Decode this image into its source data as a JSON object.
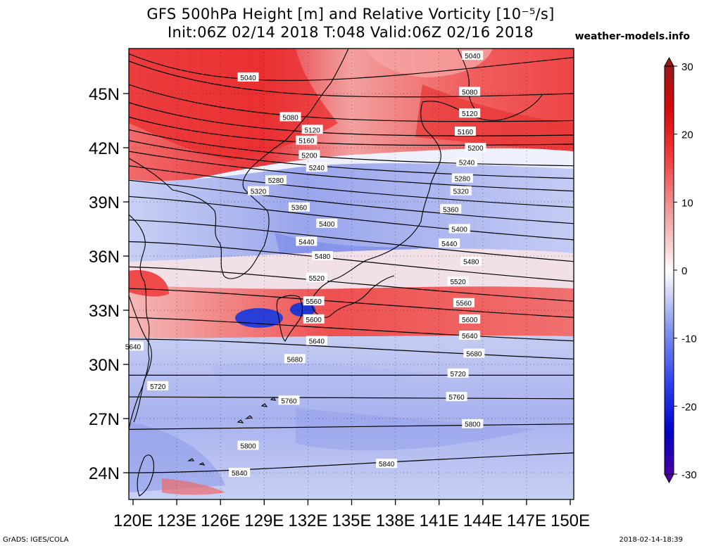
{
  "header": {
    "title_line1": "GFS 500hPa Height [m] and Relative Vorticity [10⁻⁵/s]",
    "title_line2": "Init:06Z 02/14 2018 T:048 Valid:06Z 02/16 2018",
    "site": "weather-models.info"
  },
  "footer": {
    "left": "GrADS: IGES/COLA",
    "right": "2018-02-14-18:39"
  },
  "map": {
    "lon_range": [
      120,
      150
    ],
    "lat_range": [
      22.5,
      47.5
    ],
    "lon_ticks": [
      "120E",
      "123E",
      "126E",
      "129E",
      "132E",
      "135E",
      "138E",
      "141E",
      "144E",
      "147E",
      "150E"
    ],
    "lat_ticks": [
      "24N",
      "27N",
      "30N",
      "33N",
      "36N",
      "39N",
      "42N",
      "45N"
    ],
    "graticule": "dotted",
    "colors": {
      "positive_vorticity": "#e8181a",
      "negative_vorticity": "#2a3fd8",
      "contour": "#000000",
      "coast": "#000000"
    }
  },
  "colorbar": {
    "labels": [
      "30",
      "20",
      "10",
      "0",
      "-10",
      "-20",
      "-30"
    ],
    "min": -30,
    "max": 30,
    "colors": [
      "#4a00a0",
      "#0000c8",
      "#3a50f0",
      "#8fa0f0",
      "#d8ddf8",
      "#ffffff",
      "#f8d8d8",
      "#f08f8f",
      "#f03a3a",
      "#d80000",
      "#a01818"
    ]
  },
  "contours": [
    {
      "label": "5040",
      "lat_start": 47.2,
      "lat_end": 47.0,
      "label_pos": [
        [
          "127.9",
          "45.9"
        ],
        [
          "143.3",
          "47.1"
        ]
      ]
    },
    {
      "label": "5080",
      "lat_start": 46.8,
      "lat_end": 45.0,
      "label_pos": [
        [
          "130.8",
          "43.7"
        ],
        [
          "143.1",
          "45.1"
        ]
      ]
    },
    {
      "label": "5120",
      "lat_start": 45.5,
      "lat_end": 43.5,
      "label_pos": [
        [
          "132.3",
          "43.0"
        ],
        [
          "143.1",
          "43.9"
        ]
      ]
    },
    {
      "label": "5160",
      "lat_start": 44.5,
      "lat_end": 42.7,
      "label_pos": [
        [
          "131.9",
          "42.4"
        ],
        [
          "142.8",
          "42.9"
        ]
      ]
    },
    {
      "label": "5200",
      "lat_start": 43.7,
      "lat_end": 42.2,
      "label_pos": [
        [
          "132.1",
          "41.6"
        ],
        [
          "143.5",
          "42.0"
        ]
      ]
    },
    {
      "label": "5240",
      "lat_start": 43.0,
      "lat_end": 41.0,
      "label_pos": [
        [
          "132.6",
          "40.9"
        ],
        [
          "142.9",
          "41.2"
        ]
      ]
    },
    {
      "label": "5280",
      "lat_start": 42.4,
      "lat_end": 40.3,
      "label_pos": [
        [
          "129.8",
          "40.2"
        ],
        [
          "142.6",
          "40.3"
        ]
      ]
    },
    {
      "label": "5320",
      "lat_start": 41.8,
      "lat_end": 39.6,
      "label_pos": [
        [
          "128.6",
          "39.6"
        ],
        [
          "142.5",
          "39.6"
        ]
      ]
    },
    {
      "label": "5360",
      "lat_start": 41.0,
      "lat_end": 38.7,
      "label_pos": [
        [
          "131.4",
          "38.7"
        ],
        [
          "141.8",
          "38.6"
        ]
      ]
    },
    {
      "label": "5400",
      "lat_start": 40.2,
      "lat_end": 37.8,
      "label_pos": [
        [
          "133.3",
          "37.8"
        ],
        [
          "142.4",
          "37.5"
        ]
      ]
    },
    {
      "label": "5440",
      "lat_start": 39.3,
      "lat_end": 36.9,
      "label_pos": [
        [
          "131.9",
          "36.8"
        ],
        [
          "141.7",
          "36.7"
        ]
      ]
    },
    {
      "label": "5480",
      "lat_start": 38.0,
      "lat_end": 35.7,
      "label_pos": [
        [
          "133.0",
          "36.0"
        ],
        [
          "143.2",
          "35.7"
        ]
      ]
    },
    {
      "label": "5520",
      "lat_start": 36.8,
      "lat_end": 34.6,
      "label_pos": [
        [
          "132.6",
          "34.8"
        ],
        [
          "142.3",
          "34.6"
        ]
      ]
    },
    {
      "label": "5560",
      "lat_start": 35.4,
      "lat_end": 33.5,
      "label_pos": [
        [
          "132.4",
          "33.5"
        ],
        [
          "142.7",
          "33.4"
        ]
      ]
    },
    {
      "label": "5600",
      "lat_start": 34.2,
      "lat_end": 32.6,
      "label_pos": [
        [
          "132.4",
          "32.5"
        ],
        [
          "143.1",
          "32.5"
        ]
      ]
    },
    {
      "label": "5640",
      "lat_start": 32.6,
      "lat_end": 31.3,
      "label_pos": [
        [
          "120.0",
          "31.0"
        ],
        [
          "132.6",
          "31.3"
        ],
        [
          "143.1",
          "31.6"
        ]
      ]
    },
    {
      "label": "5680",
      "lat_start": 31.4,
      "lat_end": 30.3,
      "label_pos": [
        [
          "131.1",
          "30.3"
        ],
        [
          "143.4",
          "30.6"
        ]
      ]
    },
    {
      "label": "5720",
      "lat_start": 29.4,
      "lat_end": 29.4,
      "label_pos": [
        [
          "121.7",
          "28.8"
        ],
        [
          "142.3",
          "29.5"
        ]
      ]
    },
    {
      "label": "5760",
      "lat_start": 28.2,
      "lat_end": 28.1,
      "label_pos": [
        [
          "130.7",
          "28.0"
        ],
        [
          "142.2",
          "28.2"
        ]
      ]
    },
    {
      "label": "5800",
      "lat_start": 26.4,
      "lat_end": 26.7,
      "label_pos": [
        [
          "127.9",
          "25.5"
        ],
        [
          "143.3",
          "26.7"
        ]
      ]
    },
    {
      "label": "5840",
      "lat_start": 24.0,
      "lat_end": 25.1,
      "label_pos": [
        [
          "127.3",
          "24.0"
        ],
        [
          "137.4",
          "24.5"
        ]
      ]
    }
  ]
}
